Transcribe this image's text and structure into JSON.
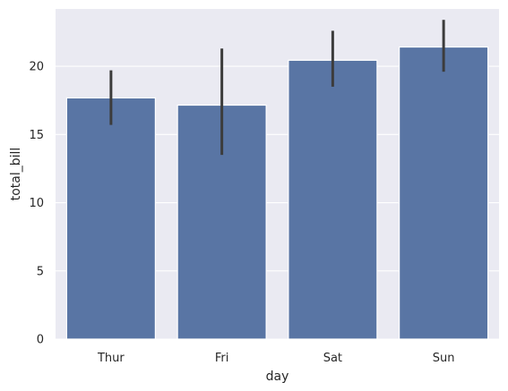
{
  "chart_data": {
    "type": "bar",
    "title": "",
    "xlabel": "day",
    "ylabel": "total_bill",
    "categories": [
      "Thur",
      "Fri",
      "Sat",
      "Sun"
    ],
    "values": [
      17.68,
      17.15,
      20.44,
      21.41
    ],
    "error_bars": {
      "lower": [
        15.7,
        13.5,
        18.5,
        19.6
      ],
      "upper": [
        19.7,
        21.3,
        22.6,
        23.4
      ]
    },
    "ylim": [
      0,
      24.2
    ],
    "yticks": [
      0,
      5,
      10,
      15,
      20
    ],
    "ytick_labels": [
      "0",
      "5",
      "10",
      "15",
      "20"
    ],
    "grid": true,
    "colors": {
      "bar": "#5975a4",
      "error": "#3c3c3c",
      "plot_bg": "#eaeaf2",
      "grid": "#ffffff"
    }
  }
}
